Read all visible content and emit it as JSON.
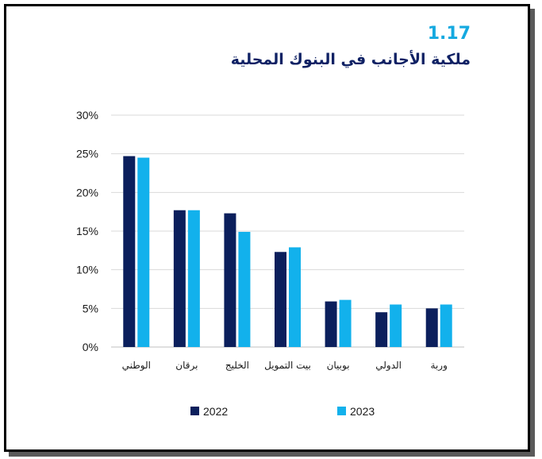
{
  "figure": {
    "number": "1.17",
    "title": "ملكية الأجانب في البنوك المحلية"
  },
  "colors": {
    "series_2022": "#0b1f5c",
    "series_2023": "#12b1ec",
    "gridline": "#d9d9d9",
    "number": "#14a9e0",
    "title": "#0f2164"
  },
  "chart_data": {
    "type": "bar",
    "categories": [
      "الوطني",
      "برقان",
      "الخليج",
      "بيت التمويل",
      "بوبيان",
      "الدولي",
      "وربة"
    ],
    "series": [
      {
        "name": "2022",
        "values": [
          24.7,
          17.7,
          17.3,
          12.3,
          5.9,
          4.5,
          5.0
        ]
      },
      {
        "name": "2023",
        "values": [
          24.5,
          17.7,
          14.9,
          12.9,
          6.1,
          5.5,
          5.5
        ]
      }
    ],
    "y_ticks": [
      "0%",
      "5%",
      "10%",
      "15%",
      "20%",
      "25%",
      "30%"
    ],
    "ylim": [
      0,
      30
    ],
    "grid": true,
    "legend_position": "bottom",
    "title": "ملكية الأجانب في البنوك المحلية"
  }
}
